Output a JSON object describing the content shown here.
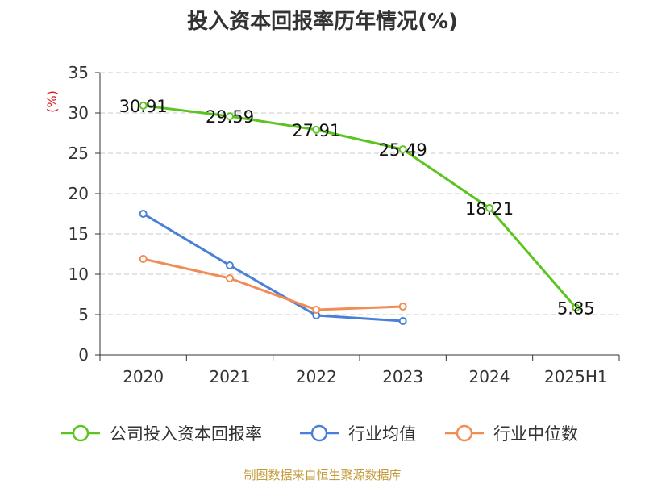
{
  "title": "投入资本回报率历年情况(%)",
  "source": "制图数据来自恒生聚源数据库",
  "chart_data": {
    "type": "line",
    "title": "投入资本回报率历年情况(%)",
    "ylabel": "(%)",
    "xlabel": "",
    "categories": [
      "2020",
      "2021",
      "2022",
      "2023",
      "2024",
      "2025H1"
    ],
    "ylim": [
      0,
      35
    ],
    "yticks": [
      0,
      5,
      10,
      15,
      20,
      25,
      30,
      35
    ],
    "grid": "horizontal dashed",
    "legend_position": "bottom",
    "series": [
      {
        "name": "公司投入资本回报率",
        "color": "#5cc41f",
        "values": [
          30.91,
          29.59,
          27.91,
          25.49,
          18.21,
          5.85
        ],
        "labels": [
          "30.91",
          "29.59",
          "27.91",
          "25.49",
          "18.21",
          "5.85"
        ]
      },
      {
        "name": "行业均值",
        "color": "#4a7fd8",
        "values": [
          17.5,
          11.1,
          4.9,
          4.2,
          null,
          null
        ]
      },
      {
        "name": "行业中位数",
        "color": "#f28c55",
        "values": [
          11.9,
          9.5,
          5.6,
          6.0,
          null,
          null
        ]
      }
    ]
  }
}
